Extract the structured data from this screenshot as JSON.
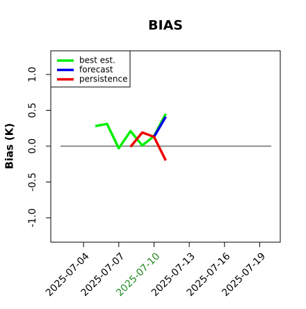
{
  "chart_data": {
    "type": "line",
    "title": "BIAS",
    "ylabel": "Bias (K)",
    "x": [
      "2025-07-05",
      "2025-07-06",
      "2025-07-07",
      "2025-07-08",
      "2025-07-09",
      "2025-07-10",
      "2025-07-11"
    ],
    "series": [
      {
        "name": "best est.",
        "color": "#00ee00",
        "values": [
          0.28,
          0.31,
          -0.03,
          0.21,
          0.01,
          0.14,
          0.45
        ]
      },
      {
        "name": "forecast",
        "color": "#0000ee",
        "values": [
          null,
          null,
          null,
          null,
          null,
          0.13,
          0.41
        ]
      },
      {
        "name": "persistence",
        "color": "#ee0000",
        "values": [
          null,
          null,
          null,
          -0.01,
          0.19,
          0.13,
          -0.2
        ]
      }
    ],
    "xlim": [
      "2025-07-01T05:00:00",
      "2025-07-20T18:00:00"
    ],
    "xticks": [
      "2025-07-04",
      "2025-07-07",
      "2025-07-10",
      "2025-07-13",
      "2025-07-16",
      "2025-07-19"
    ],
    "xtick_colors": [
      "#000000",
      "#000000",
      "#228b22",
      "#000000",
      "#000000",
      "#000000"
    ],
    "ylim": [
      -1.34,
      1.33
    ],
    "yticks": [
      {
        "value": -1,
        "label": "-1.0"
      },
      -0.5,
      {
        "value": 0,
        "label": "0.0"
      },
      0.5,
      {
        "value": 1,
        "label": "1.0"
      }
    ],
    "hline": 0,
    "legend": "upper left"
  }
}
